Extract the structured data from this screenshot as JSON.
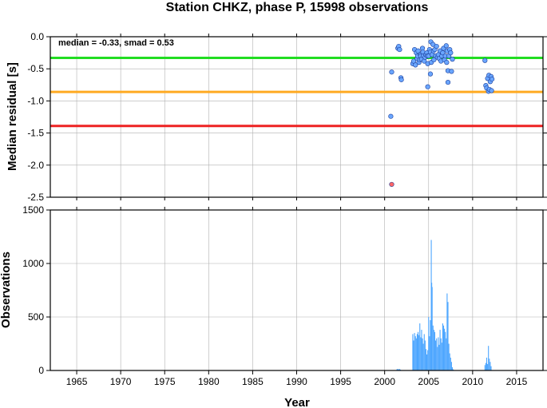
{
  "chart_data": [
    {
      "type": "scatter",
      "title": "Station CHKZ, phase P, 15998 observations",
      "ylabel": "Median residual [s]",
      "annotation": "median = -0.33, smad = 0.53",
      "xlim": [
        1962,
        2018
      ],
      "ylim": [
        -2.5,
        0.0
      ],
      "yticks": [
        0.0,
        -0.5,
        -1.0,
        -1.5,
        -2.0,
        -2.5
      ],
      "ytick_labels": [
        "0.0",
        "-0.5",
        "-1.0",
        "-1.5",
        "-2.0",
        "-2.5"
      ],
      "grid": true,
      "hlines": [
        {
          "y": -0.33,
          "color": "#22dd22"
        },
        {
          "y": -0.86,
          "color": "#ffaa22"
        },
        {
          "y": -1.39,
          "color": "#ee2222"
        }
      ],
      "series": [
        {
          "color": "#6aa6ff",
          "x": [
            2000.8,
            2001.5,
            2001.6,
            2001.7,
            2001.85,
            2001.9,
            2003.2,
            2003.3,
            2003.4,
            2003.5,
            2003.6,
            2003.7,
            2003.75,
            2003.8,
            2003.9,
            2004.0,
            2004.05,
            2004.1,
            2004.2,
            2004.3,
            2004.35,
            2004.4,
            2004.5,
            2004.6,
            2004.7,
            2004.8,
            2004.85,
            2004.9,
            2005.0,
            2005.1,
            2005.2,
            2005.25,
            2005.3,
            2005.4,
            2005.5,
            2005.55,
            2005.6,
            2005.7,
            2005.8,
            2005.9,
            2006.0,
            2006.1,
            2006.2,
            2006.3,
            2006.4,
            2006.5,
            2006.6,
            2006.7,
            2006.8,
            2006.9,
            2007.0,
            2007.05,
            2007.1,
            2007.2,
            2007.3,
            2007.4,
            2007.5,
            2007.6,
            2007.7,
            2011.4,
            2011.5,
            2011.6,
            2011.7,
            2011.8,
            2011.85,
            2011.9,
            2012.0,
            2012.1,
            2012.15,
            2012.2,
            2000.7,
            2004.9,
            2005.2,
            2007.2
          ],
          "y": [
            -0.55,
            -0.18,
            -0.15,
            -0.2,
            -0.64,
            -0.67,
            -0.42,
            -0.38,
            -0.2,
            -0.44,
            -0.25,
            -0.34,
            -0.3,
            -0.22,
            -0.4,
            -0.36,
            -0.28,
            -0.3,
            -0.35,
            -0.18,
            -0.24,
            -0.3,
            -0.38,
            -0.32,
            -0.28,
            -0.25,
            -0.3,
            -0.42,
            -0.3,
            -0.2,
            -0.24,
            -0.08,
            -0.4,
            -0.28,
            -0.12,
            -0.22,
            -0.36,
            -0.2,
            -0.3,
            -0.15,
            -0.32,
            -0.28,
            -0.34,
            -0.22,
            -0.38,
            -0.3,
            -0.25,
            -0.18,
            -0.36,
            -0.3,
            -0.14,
            -0.4,
            -0.22,
            -0.53,
            -0.3,
            -0.2,
            -0.25,
            -0.54,
            -0.35,
            -0.37,
            -0.76,
            -0.8,
            -0.65,
            -0.85,
            -0.6,
            -0.82,
            -0.7,
            -0.62,
            -0.84,
            -0.66,
            -1.24,
            -0.78,
            -0.58,
            -0.71
          ]
        },
        {
          "color": "#ff6666",
          "x": [
            2000.8
          ],
          "y": [
            -2.3
          ]
        }
      ]
    },
    {
      "type": "bar",
      "ylabel": "Observations",
      "xlabel": "Year",
      "xlim": [
        1962,
        2018
      ],
      "ylim": [
        0,
        1500
      ],
      "yticks": [
        0,
        500,
        1000,
        1500
      ],
      "ytick_labels": [
        "0",
        "500",
        "1000",
        "1500"
      ],
      "xticks": [
        1965,
        1970,
        1975,
        1980,
        1985,
        1990,
        1995,
        2000,
        2005,
        2010,
        2015
      ],
      "xtick_labels": [
        "1965",
        "1970",
        "1975",
        "1980",
        "1985",
        "1990",
        "1995",
        "2000",
        "2005",
        "2010",
        "2015"
      ],
      "grid": true,
      "color": "#4da6ff",
      "x": [
        2001.4,
        2001.5,
        2001.6,
        2001.7,
        2001.8,
        2003.2,
        2003.3,
        2003.4,
        2003.5,
        2003.6,
        2003.7,
        2003.8,
        2003.9,
        2004.0,
        2004.1,
        2004.2,
        2004.3,
        2004.4,
        2004.5,
        2004.6,
        2004.7,
        2004.8,
        2004.9,
        2005.0,
        2005.1,
        2005.2,
        2005.3,
        2005.35,
        2005.4,
        2005.5,
        2005.6,
        2005.7,
        2005.8,
        2005.9,
        2006.0,
        2006.1,
        2006.2,
        2006.3,
        2006.4,
        2006.5,
        2006.6,
        2006.7,
        2006.8,
        2006.9,
        2007.0,
        2007.1,
        2007.2,
        2007.3,
        2007.4,
        2007.5,
        2007.6,
        2007.7,
        2007.8,
        2011.4,
        2011.5,
        2011.6,
        2011.7,
        2011.8,
        2011.9,
        2012.0,
        2012.1
      ],
      "values": [
        12,
        15,
        10,
        14,
        8,
        340,
        280,
        350,
        320,
        300,
        340,
        360,
        330,
        440,
        310,
        380,
        300,
        250,
        340,
        280,
        200,
        150,
        190,
        500,
        320,
        470,
        1220,
        820,
        780,
        420,
        380,
        360,
        280,
        300,
        220,
        310,
        240,
        380,
        300,
        260,
        440,
        420,
        390,
        360,
        300,
        720,
        640,
        250,
        160,
        120,
        80,
        30,
        10,
        50,
        70,
        120,
        60,
        230,
        110,
        80,
        40
      ]
    }
  ]
}
